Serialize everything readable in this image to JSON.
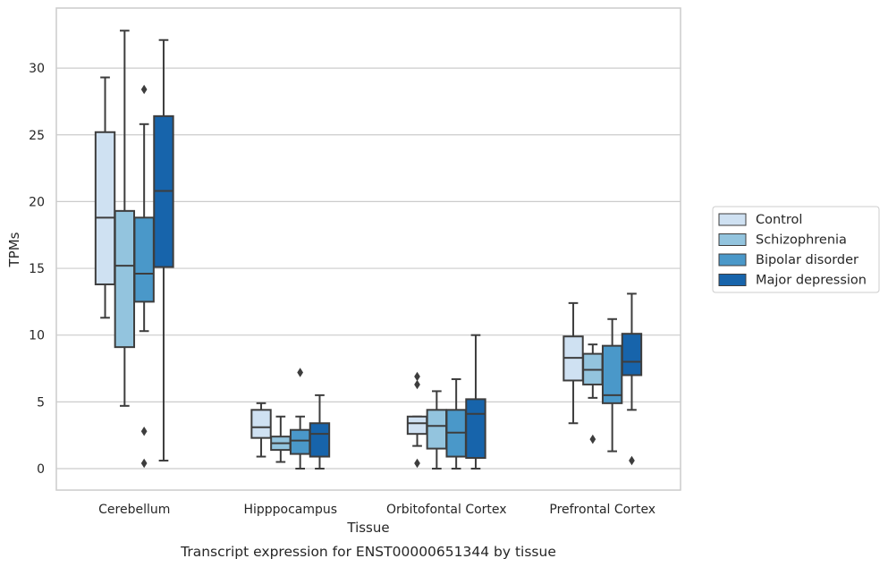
{
  "caption": "Transcript expression for ENST00000651344 by tissue",
  "colors": {
    "Control": "#cfe1f2",
    "Schizophrenia": "#93c4de",
    "Bipolar disorder": "#4a98c9",
    "Major depression": "#1764ab",
    "grid": "#cccccc",
    "box_line": "#3d3d3d"
  },
  "chart_data": {
    "type": "box",
    "xlabel": "Tissue",
    "ylabel": "TPMs",
    "ylim": [
      -1.6,
      34.2
    ],
    "yticks": [
      0,
      5,
      10,
      15,
      20,
      25,
      30
    ],
    "grid": "horizontal",
    "legend_position": "right",
    "categories": [
      "Cerebellum",
      "Hipppocampus",
      "Orbitofontal Cortex",
      "Prefrontal Cortex"
    ],
    "series": [
      {
        "name": "Control",
        "boxes": [
          {
            "whislo": 11.3,
            "q1": 13.8,
            "med": 18.8,
            "q3": 25.2,
            "whishi": 29.3,
            "fliers": []
          },
          {
            "whislo": 0.9,
            "q1": 2.3,
            "med": 3.1,
            "q3": 4.4,
            "whishi": 4.9,
            "fliers": []
          },
          {
            "whislo": 1.7,
            "q1": 2.6,
            "med": 3.4,
            "q3": 3.9,
            "whishi": 3.9,
            "fliers": [
              6.9,
              6.3,
              0.4
            ]
          },
          {
            "whislo": 3.4,
            "q1": 6.6,
            "med": 8.3,
            "q3": 9.9,
            "whishi": 12.4,
            "fliers": []
          }
        ]
      },
      {
        "name": "Schizophrenia",
        "boxes": [
          {
            "whislo": 4.7,
            "q1": 9.1,
            "med": 15.2,
            "q3": 19.3,
            "whishi": 32.8,
            "fliers": []
          },
          {
            "whislo": 0.5,
            "q1": 1.4,
            "med": 1.9,
            "q3": 2.4,
            "whishi": 3.9,
            "fliers": []
          },
          {
            "whislo": 0.0,
            "q1": 1.5,
            "med": 3.2,
            "q3": 4.4,
            "whishi": 5.8,
            "fliers": []
          },
          {
            "whislo": 5.3,
            "q1": 6.3,
            "med": 7.4,
            "q3": 8.6,
            "whishi": 9.3,
            "fliers": [
              2.2
            ]
          }
        ]
      },
      {
        "name": "Bipolar disorder",
        "boxes": [
          {
            "whislo": 10.3,
            "q1": 12.5,
            "med": 14.6,
            "q3": 18.8,
            "whishi": 25.8,
            "fliers": [
              28.4,
              2.8,
              0.4
            ]
          },
          {
            "whislo": 0.0,
            "q1": 1.1,
            "med": 2.1,
            "q3": 2.9,
            "whishi": 3.9,
            "fliers": [
              7.2
            ]
          },
          {
            "whislo": 0.0,
            "q1": 0.9,
            "med": 2.7,
            "q3": 4.4,
            "whishi": 6.7,
            "fliers": []
          },
          {
            "whislo": 1.3,
            "q1": 4.9,
            "med": 5.5,
            "q3": 9.2,
            "whishi": 11.2,
            "fliers": []
          }
        ]
      },
      {
        "name": "Major depression",
        "boxes": [
          {
            "whislo": 0.6,
            "q1": 15.1,
            "med": 20.8,
            "q3": 26.4,
            "whishi": 32.1,
            "fliers": []
          },
          {
            "whislo": 0.0,
            "q1": 0.9,
            "med": 2.6,
            "q3": 3.4,
            "whishi": 5.5,
            "fliers": []
          },
          {
            "whislo": 0.0,
            "q1": 0.8,
            "med": 4.1,
            "q3": 5.2,
            "whishi": 10.0,
            "fliers": []
          },
          {
            "whislo": 4.4,
            "q1": 7.0,
            "med": 8.0,
            "q3": 10.1,
            "whishi": 13.1,
            "fliers": [
              0.6
            ]
          }
        ]
      }
    ]
  }
}
